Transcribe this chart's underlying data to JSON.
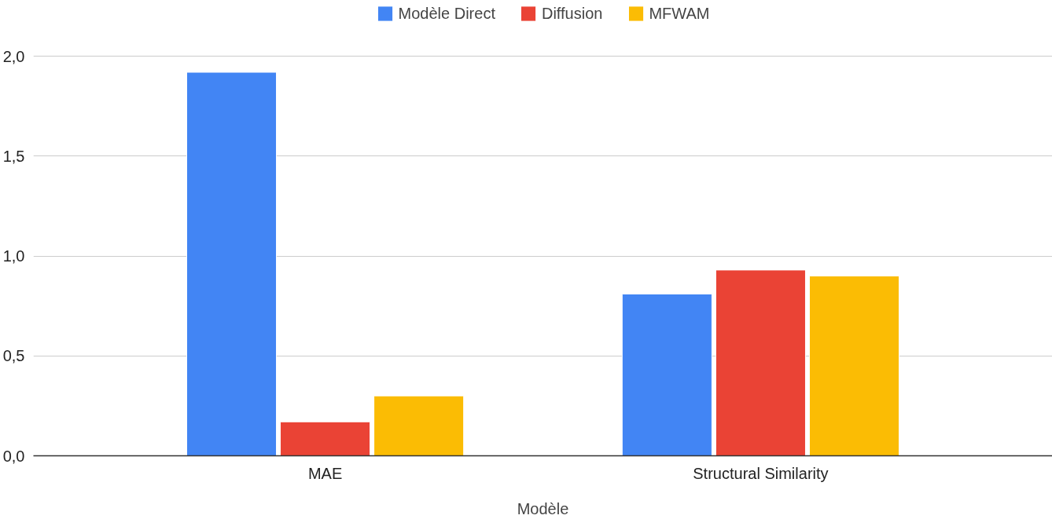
{
  "chart_data": {
    "type": "bar",
    "xlabel": "Modèle",
    "categories": [
      "MAE",
      "Structural Similarity"
    ],
    "series": [
      {
        "name": "Modèle Direct",
        "color": "#4285f4",
        "values": [
          1.92,
          0.81
        ]
      },
      {
        "name": "Diffusion",
        "color": "#ea4335",
        "values": [
          0.17,
          0.93
        ]
      },
      {
        "name": "MFWAM",
        "color": "#fbbc04",
        "values": [
          0.3,
          0.9
        ]
      }
    ],
    "ylim": [
      0,
      2.0
    ],
    "yticks": [
      {
        "value": 0,
        "label": "0,0"
      },
      {
        "value": 0.5,
        "label": "0,5"
      },
      {
        "value": 1.0,
        "label": "1,0"
      },
      {
        "value": 1.5,
        "label": "1,5"
      },
      {
        "value": 2.0,
        "label": "2,0"
      }
    ],
    "grid": "y",
    "legend": "top"
  }
}
